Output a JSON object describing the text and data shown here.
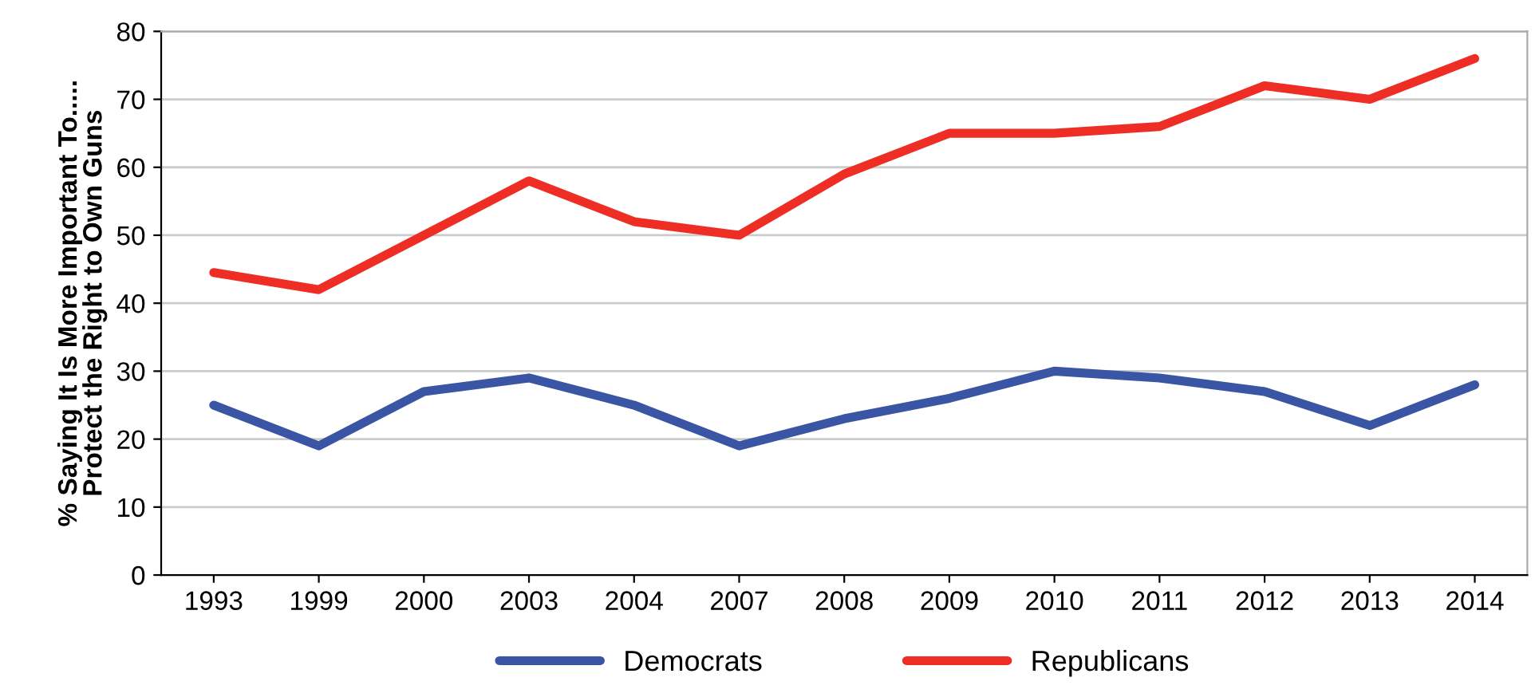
{
  "chart_data": {
    "type": "line",
    "ylabel": "% Saying It Is More Important To.....\nProtect the Right to Own Guns",
    "categories": [
      "1993",
      "1999",
      "2000",
      "2003",
      "2004",
      "2007",
      "2008",
      "2009",
      "2010",
      "2011",
      "2012",
      "2013",
      "2014"
    ],
    "series": [
      {
        "name": "Democrats",
        "color": "#3a55a4",
        "values": [
          25,
          19,
          27,
          29,
          25,
          19,
          23,
          26,
          30,
          29,
          27,
          22,
          28
        ]
      },
      {
        "name": "Republicans",
        "color": "#ee2e24",
        "values": [
          44.5,
          42,
          50,
          58,
          52,
          50,
          59,
          65,
          65,
          66,
          72,
          70,
          76
        ]
      }
    ],
    "ylim": [
      0,
      80
    ],
    "yticks": [
      0,
      10,
      20,
      30,
      40,
      50,
      60,
      70,
      80
    ],
    "grid": "y",
    "legend": "bottom",
    "marker": "none",
    "line_style": "solid"
  }
}
